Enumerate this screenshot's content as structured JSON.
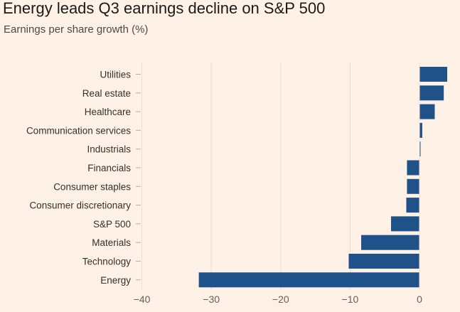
{
  "title": "Energy leads Q3 earnings decline on S&P 500",
  "subtitle": "Earnings per share growth (%)",
  "colors": {
    "background": "#fff1e5",
    "bar": "#1f5289",
    "grid": "#e9ddd2",
    "tick": "#b9b0a8"
  },
  "chart_data": {
    "type": "bar",
    "orientation": "horizontal",
    "title": "Energy leads Q3 earnings decline on S&P 500",
    "subtitle": "Earnings per share growth (%)",
    "categories": [
      "Utilities",
      "Real estate",
      "Healthcare",
      "Communication services",
      "Industrials",
      "Financials",
      "Consumer staples",
      "Consumer discretionary",
      "S&P 500",
      "Materials",
      "Technology",
      "Energy"
    ],
    "values": [
      4.0,
      3.5,
      2.2,
      0.4,
      0.1,
      -1.8,
      -1.8,
      -1.9,
      -4.1,
      -8.4,
      -10.2,
      -31.8
    ],
    "xlim": [
      -40,
      4
    ],
    "xticks": [
      -40,
      -30,
      -20,
      -10,
      0
    ],
    "grid": true
  }
}
